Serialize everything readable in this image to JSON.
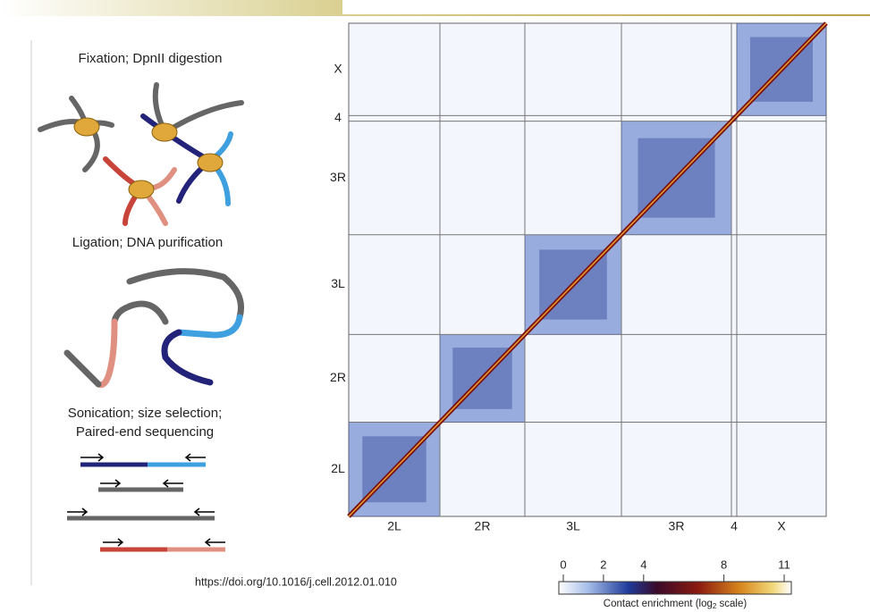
{
  "figure": {
    "steps": [
      {
        "lines": [
          "Fixation; DpnII digestion"
        ]
      },
      {
        "lines": [
          "Ligation; DNA purification"
        ]
      },
      {
        "lines": [
          "Sonication; size selection;",
          "Paired-end sequencing"
        ]
      }
    ],
    "heatmap": {
      "x_labels": [
        "2L",
        "2R",
        "3L",
        "3R",
        "4",
        "X"
      ],
      "y_labels": [
        "X",
        "4",
        "3R",
        "3L",
        "2R",
        "2L"
      ]
    },
    "colorbar": {
      "ticks": [
        0,
        2,
        4,
        8,
        11
      ],
      "lim": [
        0,
        11
      ],
      "label_parts": [
        "Contact enrichment (log",
        "2",
        " scale)"
      ]
    },
    "citation": "https://doi.org/10.1016/j.cell.2012.01.010"
  }
}
